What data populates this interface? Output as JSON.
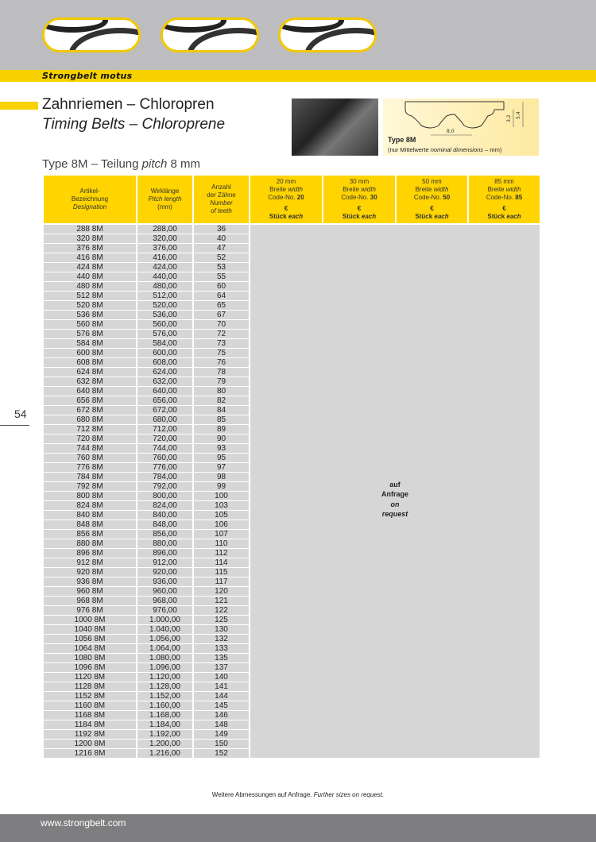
{
  "brand": "Strongbelt motus",
  "title_de": "Zahnriemen – Chloropren",
  "title_en": "Timing Belts – Chloroprene",
  "diagram": {
    "type": "Type 8M",
    "note_de": "(nur Mittelwerte ",
    "note_en": "nominal dimensions",
    "note_unit": " – mm)",
    "dim_pitch": "8,0",
    "dim_tooth": "3,2",
    "dim_total": "5,4"
  },
  "subtitle": {
    "a": "Type 8M – Teilung ",
    "b": "pitch",
    "c": " 8 mm"
  },
  "page_number": "54",
  "headers": {
    "designation": {
      "de": "Artikel-",
      "de2": "Bezeichnung",
      "en": "Designation"
    },
    "length": {
      "de": "Wirklänge",
      "en": "Pitch length",
      "unit": "(mm)"
    },
    "teeth": {
      "de": "Anzahl",
      "de2": "der Zähne",
      "en": "Number",
      "en2": "of teeth"
    },
    "widths": [
      {
        "mm": "20 mm",
        "breite": "Breite ",
        "width": "width",
        "code": "Code-No. ",
        "code_no": "20",
        "eur": "€",
        "stk": "Stück ",
        "each": "each"
      },
      {
        "mm": "30 mm",
        "breite": "Breite ",
        "width": "width",
        "code": "Code-No. ",
        "code_no": "30",
        "eur": "€",
        "stk": "Stück ",
        "each": "each"
      },
      {
        "mm": "50 mm",
        "breite": "Breite ",
        "width": "width",
        "code": "Code-No. ",
        "code_no": "50",
        "eur": "€",
        "stk": "Stück ",
        "each": "each"
      },
      {
        "mm": "85 mm",
        "breite": "Breite ",
        "width": "width",
        "code": "Code-No. ",
        "code_no": "85",
        "eur": "€",
        "stk": "Stück ",
        "each": "each"
      }
    ]
  },
  "on_request": {
    "de1": "auf",
    "de2": "Anfrage",
    "en1": "on",
    "en2": "request"
  },
  "rows": [
    [
      "288 8M",
      "288,00",
      "36"
    ],
    [
      "320 8M",
      "320,00",
      "40"
    ],
    [
      "376 8M",
      "376,00",
      "47"
    ],
    [
      "416 8M",
      "416,00",
      "52"
    ],
    [
      "424 8M",
      "424,00",
      "53"
    ],
    [
      "440 8M",
      "440,00",
      "55"
    ],
    [
      "480 8M",
      "480,00",
      "60"
    ],
    [
      "512 8M",
      "512,00",
      "64"
    ],
    [
      "520 8M",
      "520,00",
      "65"
    ],
    [
      "536 8M",
      "536,00",
      "67"
    ],
    [
      "560 8M",
      "560,00",
      "70"
    ],
    [
      "576 8M",
      "576,00",
      "72"
    ],
    [
      "584 8M",
      "584,00",
      "73"
    ],
    [
      "600 8M",
      "600,00",
      "75"
    ],
    [
      "608 8M",
      "608,00",
      "76"
    ],
    [
      "624 8M",
      "624,00",
      "78"
    ],
    [
      "632 8M",
      "632,00",
      "79"
    ],
    [
      "640 8M",
      "640,00",
      "80"
    ],
    [
      "656 8M",
      "656,00",
      "82"
    ],
    [
      "672 8M",
      "672,00",
      "84"
    ],
    [
      "680 8M",
      "680,00",
      "85"
    ],
    [
      "712 8M",
      "712,00",
      "89"
    ],
    [
      "720 8M",
      "720,00",
      "90"
    ],
    [
      "744 8M",
      "744,00",
      "93"
    ],
    [
      "760 8M",
      "760,00",
      "95"
    ],
    [
      "776 8M",
      "776,00",
      "97"
    ],
    [
      "784 8M",
      "784,00",
      "98"
    ],
    [
      "792 8M",
      "792,00",
      "99"
    ],
    [
      "800 8M",
      "800,00",
      "100"
    ],
    [
      "824 8M",
      "824,00",
      "103"
    ],
    [
      "840 8M",
      "840,00",
      "105"
    ],
    [
      "848 8M",
      "848,00",
      "106"
    ],
    [
      "856 8M",
      "856,00",
      "107"
    ],
    [
      "880 8M",
      "880,00",
      "110"
    ],
    [
      "896 8M",
      "896,00",
      "112"
    ],
    [
      "912 8M",
      "912,00",
      "114"
    ],
    [
      "920 8M",
      "920,00",
      "115"
    ],
    [
      "936 8M",
      "936,00",
      "117"
    ],
    [
      "960 8M",
      "960,00",
      "120"
    ],
    [
      "968 8M",
      "968,00",
      "121"
    ],
    [
      "976 8M",
      "976,00",
      "122"
    ],
    [
      "1000 8M",
      "1.000,00",
      "125"
    ],
    [
      "1040 8M",
      "1.040,00",
      "130"
    ],
    [
      "1056 8M",
      "1.056,00",
      "132"
    ],
    [
      "1064 8M",
      "1.064,00",
      "133"
    ],
    [
      "1080 8M",
      "1.080,00",
      "135"
    ],
    [
      "1096 8M",
      "1.096,00",
      "137"
    ],
    [
      "1120 8M",
      "1.120,00",
      "140"
    ],
    [
      "1128 8M",
      "1.128,00",
      "141"
    ],
    [
      "1152 8M",
      "1.152,00",
      "144"
    ],
    [
      "1160 8M",
      "1.160,00",
      "145"
    ],
    [
      "1168 8M",
      "1.168,00",
      "146"
    ],
    [
      "1184 8M",
      "1.184,00",
      "148"
    ],
    [
      "1192 8M",
      "1.192,00",
      "149"
    ],
    [
      "1200 8M",
      "1.200,00",
      "150"
    ],
    [
      "1216 8M",
      "1.216,00",
      "152"
    ]
  ],
  "footnote": {
    "de": "Weitere Abmessungen auf Anfrage. ",
    "en": "Further sizes on request."
  },
  "footer_url": "www.strongbelt.com",
  "colors": {
    "accent": "#f7d100",
    "header_gray": "#bdbdbf",
    "footer_gray": "#7e7e80",
    "cell_gray": "#d6d6d6"
  }
}
